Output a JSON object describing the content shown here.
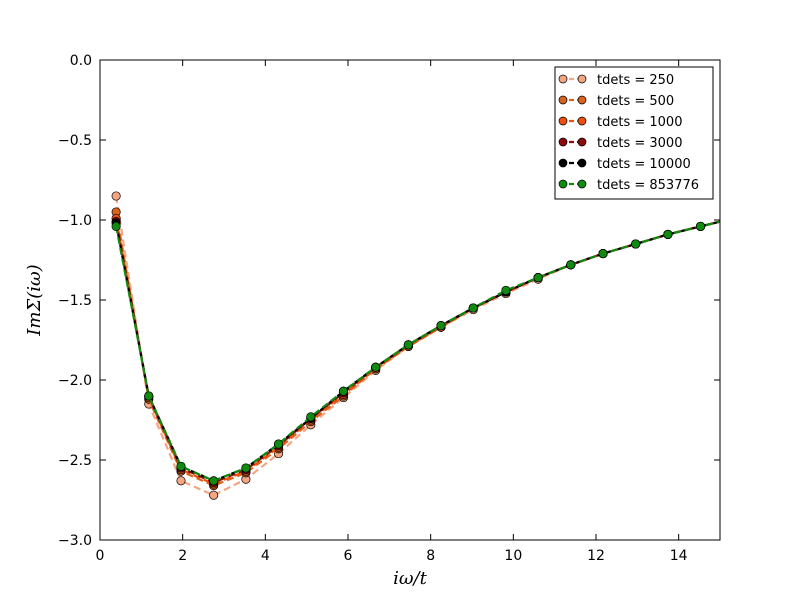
{
  "chart_data": {
    "type": "line",
    "title": "",
    "xlabel": "iω/t",
    "ylabel": "ImΣ(iω)",
    "xlim": [
      0,
      15
    ],
    "ylim": [
      -3.0,
      0.0
    ],
    "x_ticks": [
      0,
      2,
      4,
      6,
      8,
      10,
      12,
      14
    ],
    "y_ticks": [
      0.0,
      -0.5,
      -1.0,
      -1.5,
      -2.0,
      -2.5,
      -3.0
    ],
    "x_tick_labels": [
      "0",
      "2",
      "4",
      "6",
      "8",
      "10",
      "12",
      "14"
    ],
    "y_tick_labels": [
      "0.0",
      "−0.5",
      "−1.0",
      "−1.5",
      "−2.0",
      "−2.5",
      "−3.0"
    ],
    "grid": false,
    "legend_position": "top-right",
    "x": [
      0.39,
      1.18,
      1.96,
      2.75,
      3.53,
      4.32,
      5.1,
      5.89,
      6.67,
      7.46,
      8.25,
      9.03,
      9.82,
      10.6,
      11.39,
      12.17,
      12.96,
      13.74,
      14.53,
      15.32
    ],
    "series": [
      {
        "name": "tdets = 250",
        "color": "#f4a582",
        "values": [
          -0.85,
          -2.15,
          -2.63,
          -2.72,
          -2.62,
          -2.46,
          -2.28,
          -2.11,
          -1.94,
          -1.79,
          -1.67,
          -1.56,
          -1.46,
          -1.37,
          -1.28,
          -1.21,
          -1.15,
          -1.09,
          -1.04,
          -0.99
        ]
      },
      {
        "name": "tdets = 500",
        "color": "#d8641e",
        "values": [
          -0.95,
          -2.12,
          -2.57,
          -2.66,
          -2.58,
          -2.43,
          -2.26,
          -2.1,
          -1.93,
          -1.79,
          -1.67,
          -1.55,
          -1.45,
          -1.36,
          -1.28,
          -1.21,
          -1.15,
          -1.09,
          -1.04,
          -0.99
        ]
      },
      {
        "name": "tdets = 1000",
        "color": "#f04e0c",
        "values": [
          -0.99,
          -2.11,
          -2.56,
          -2.65,
          -2.57,
          -2.42,
          -2.25,
          -2.09,
          -1.93,
          -1.79,
          -1.67,
          -1.55,
          -1.45,
          -1.36,
          -1.28,
          -1.21,
          -1.15,
          -1.09,
          -1.04,
          -0.99
        ]
      },
      {
        "name": "tdets = 3000",
        "color": "#8c0a0a",
        "values": [
          -1.01,
          -2.1,
          -2.55,
          -2.64,
          -2.56,
          -2.41,
          -2.24,
          -2.08,
          -1.92,
          -1.78,
          -1.66,
          -1.55,
          -1.45,
          -1.36,
          -1.28,
          -1.21,
          -1.15,
          -1.09,
          -1.04,
          -0.99
        ]
      },
      {
        "name": "tdets = 10000",
        "color": "#000000",
        "values": [
          -1.02,
          -2.1,
          -2.54,
          -2.63,
          -2.55,
          -2.4,
          -2.24,
          -2.07,
          -1.92,
          -1.78,
          -1.66,
          -1.55,
          -1.45,
          -1.36,
          -1.28,
          -1.21,
          -1.15,
          -1.09,
          -1.04,
          -0.99
        ]
      },
      {
        "name": "tdets = 853776",
        "color": "#0f8c0f",
        "values": [
          -1.04,
          -2.1,
          -2.54,
          -2.63,
          -2.55,
          -2.4,
          -2.23,
          -2.07,
          -1.92,
          -1.78,
          -1.66,
          -1.55,
          -1.44,
          -1.36,
          -1.28,
          -1.21,
          -1.15,
          -1.09,
          -1.04,
          -0.99
        ]
      }
    ]
  }
}
